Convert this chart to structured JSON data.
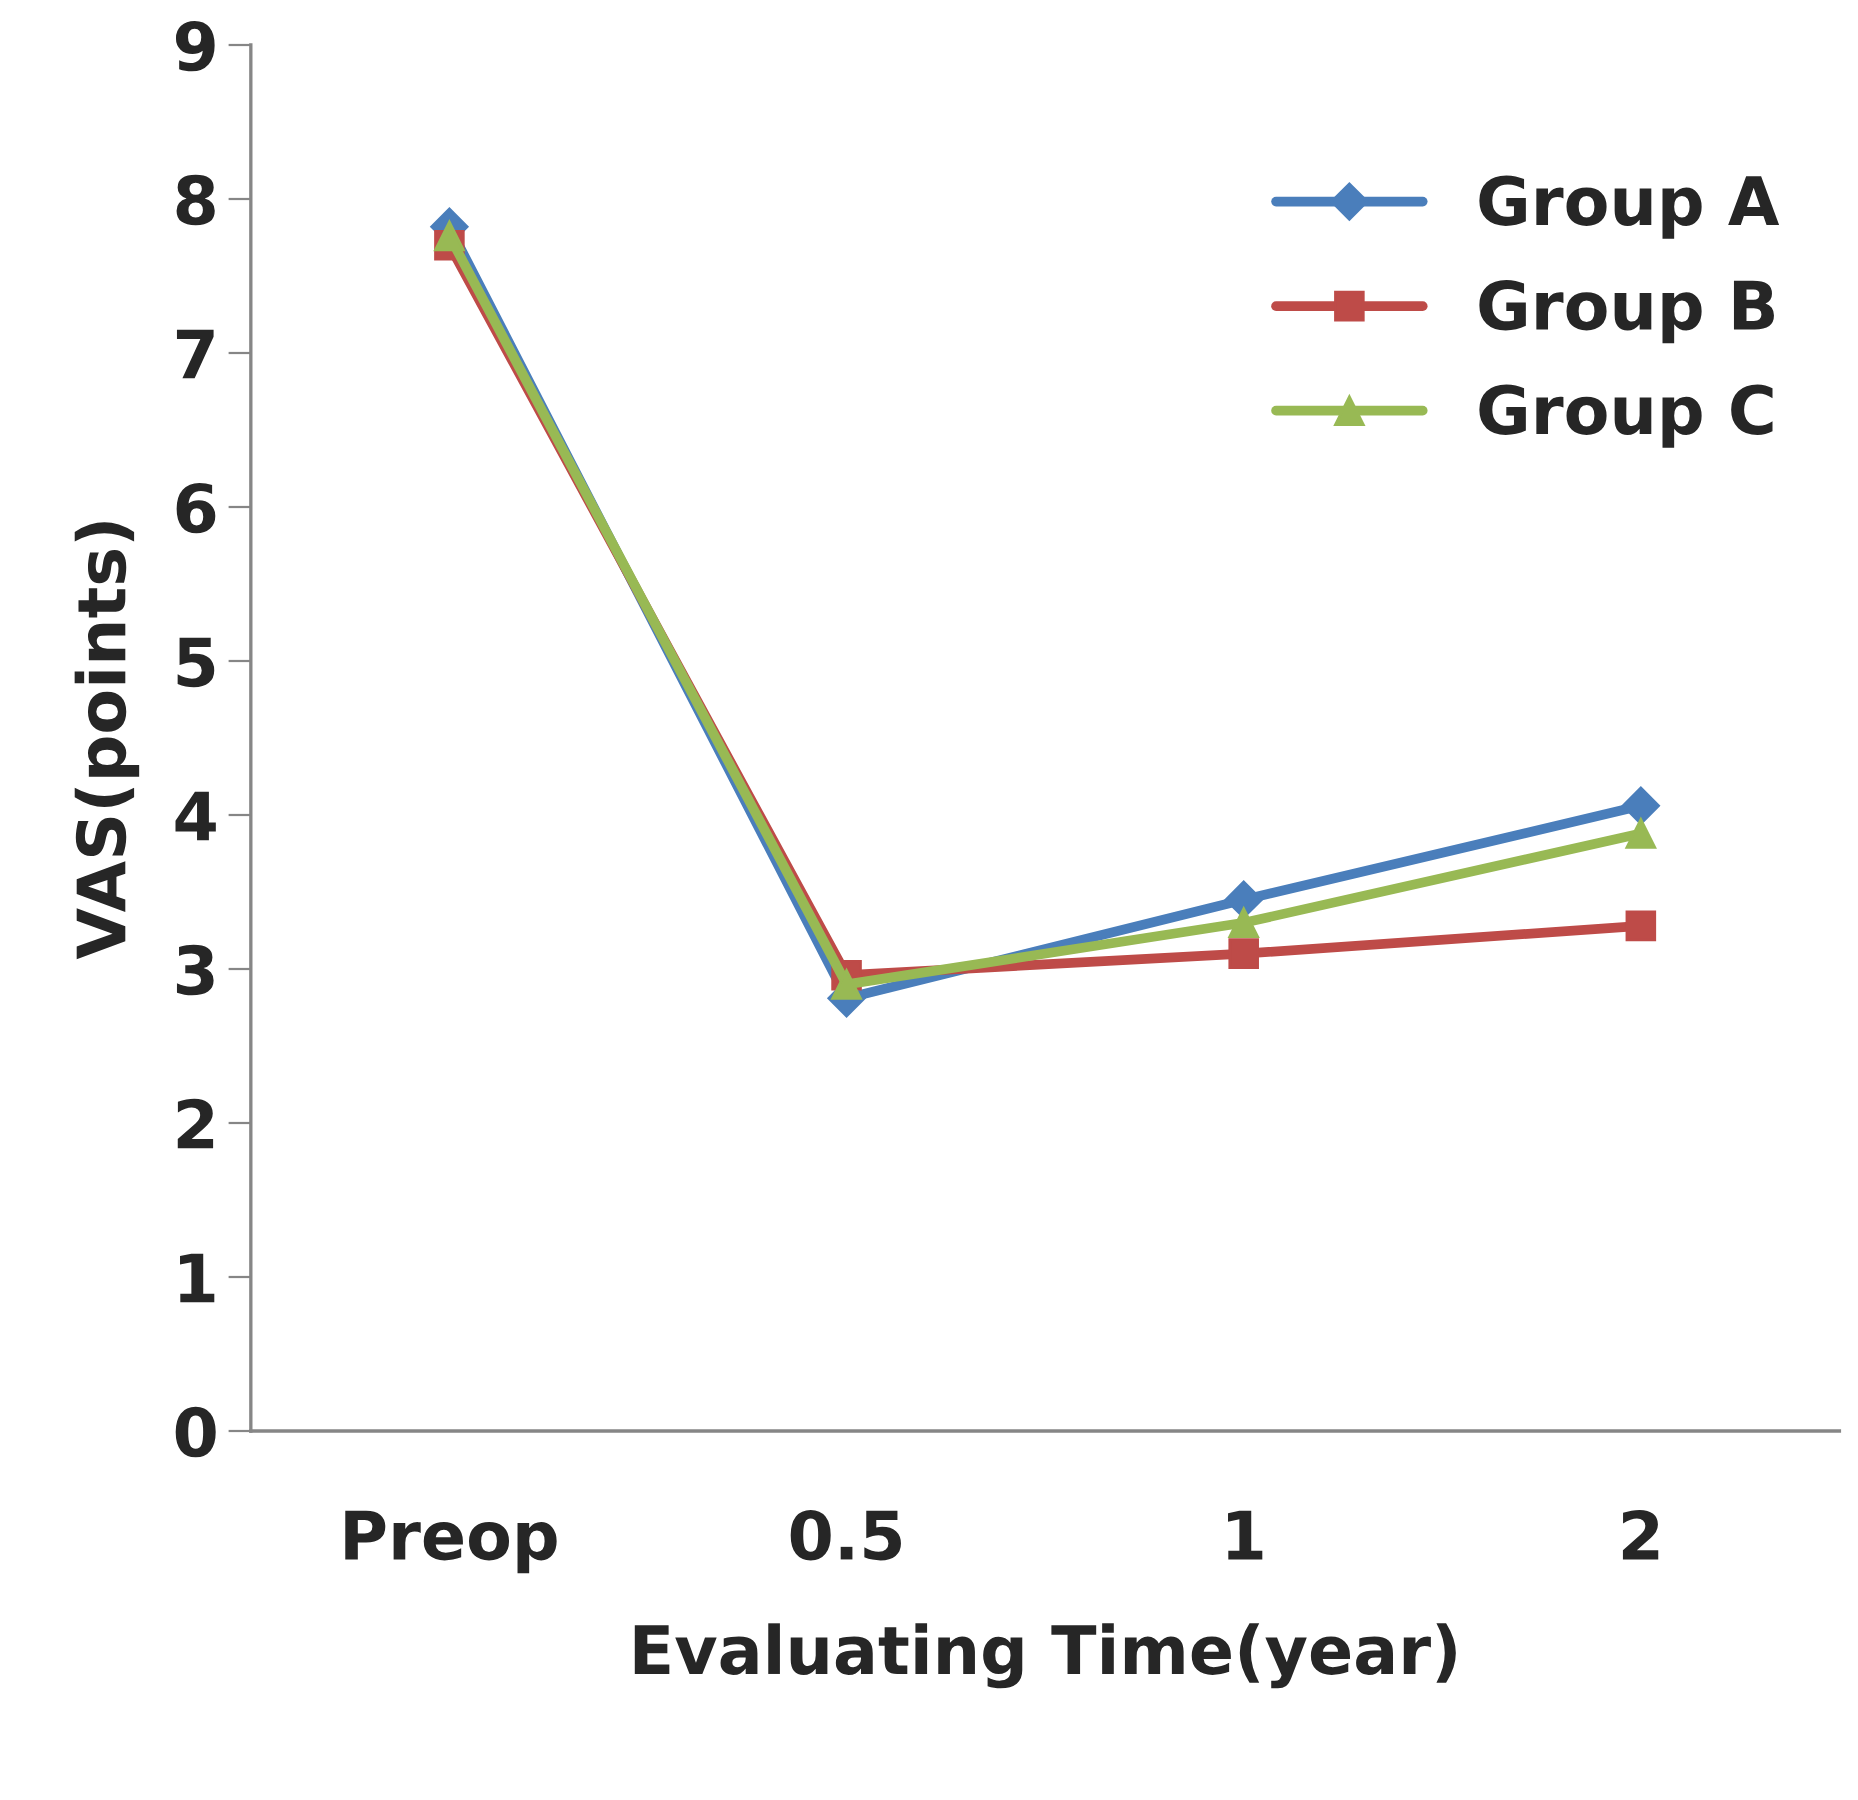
{
  "chart_data": {
    "type": "line",
    "xlabel": "Evaluating Time(year)",
    "ylabel": "VAS(points)",
    "categories": [
      "Preop",
      "0.5",
      "1",
      "2"
    ],
    "series": [
      {
        "name": "Group A",
        "color": "#4a7ebb",
        "marker": "diamond",
        "values": [
          7.82,
          2.81,
          3.45,
          4.06
        ]
      },
      {
        "name": "Group B",
        "color": "#be4b48",
        "marker": "square",
        "values": [
          7.7,
          2.96,
          3.1,
          3.28
        ]
      },
      {
        "name": "Group C",
        "color": "#98b954",
        "marker": "triangle",
        "values": [
          7.76,
          2.9,
          3.3,
          3.88
        ]
      }
    ],
    "ylim": [
      0,
      9
    ],
    "yticks": [
      0,
      1,
      2,
      3,
      4,
      5,
      6,
      7,
      8,
      9
    ],
    "grid": false,
    "legend": "top right",
    "line_style": "solid"
  }
}
